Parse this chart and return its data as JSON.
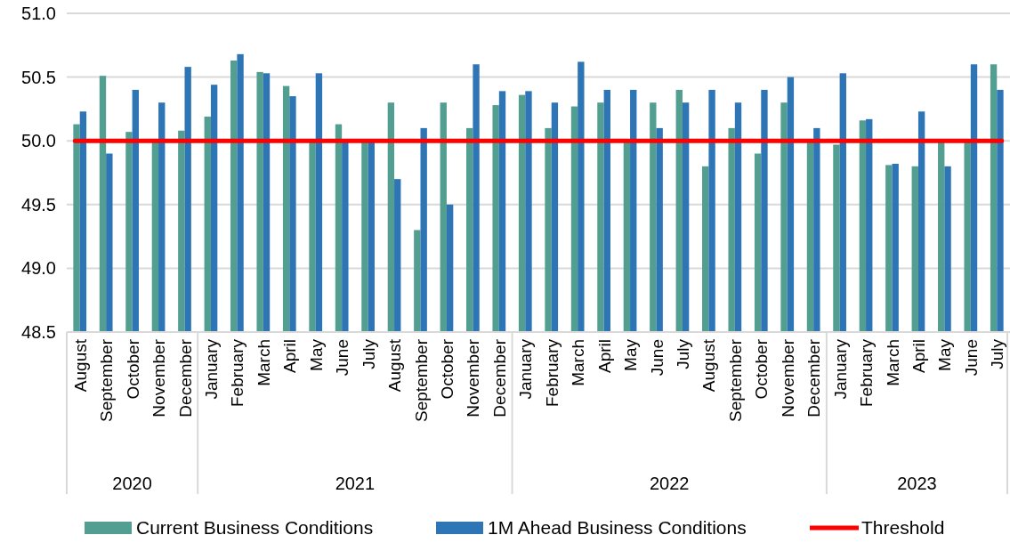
{
  "chart_data": {
    "type": "bar",
    "categories": [
      "August",
      "September",
      "October",
      "November",
      "December",
      "January",
      "February",
      "March",
      "April",
      "May",
      "June",
      "July",
      "August",
      "September",
      "October",
      "November",
      "December",
      "January",
      "February",
      "March",
      "April",
      "May",
      "June",
      "July",
      "August",
      "September",
      "October",
      "November",
      "December",
      "January",
      "February",
      "March",
      "April",
      "May",
      "June",
      "July"
    ],
    "series": [
      {
        "name": "Current Business Conditions",
        "color": "#529e91",
        "values": [
          50.13,
          50.51,
          50.07,
          50.0,
          50.08,
          50.19,
          50.63,
          50.54,
          50.43,
          50.0,
          50.13,
          50.0,
          50.3,
          49.3,
          50.3,
          50.1,
          50.28,
          50.36,
          50.1,
          50.27,
          50.3,
          50.0,
          50.3,
          50.4,
          49.8,
          50.1,
          49.9,
          50.3,
          50.0,
          49.97,
          50.16,
          49.81,
          49.8,
          50.0,
          50.0,
          50.6
        ]
      },
      {
        "name": "1M Ahead Business Conditions",
        "color": "#2e75b6",
        "values": [
          50.23,
          49.9,
          50.4,
          50.3,
          50.58,
          50.44,
          50.68,
          50.53,
          50.35,
          50.53,
          50.0,
          50.0,
          49.7,
          50.1,
          49.5,
          50.6,
          50.39,
          50.39,
          50.3,
          50.62,
          50.4,
          50.4,
          50.1,
          50.3,
          50.4,
          50.3,
          50.4,
          50.5,
          50.1,
          50.53,
          50.17,
          49.82,
          50.23,
          49.8,
          50.6,
          50.4
        ]
      }
    ],
    "ref_lines": [
      {
        "axis": "y",
        "value": 50.0,
        "label": "Threshold",
        "color": "#ff0000"
      }
    ],
    "annotations": [
      "2020",
      "2021",
      "2022",
      "2023"
    ],
    "ylim": [
      48.5,
      51.0
    ],
    "yticks": [
      {
        "value": 48.5,
        "label": "48.5"
      },
      {
        "value": 49.0,
        "label": "49.0"
      },
      {
        "value": 49.5,
        "label": "49.5"
      },
      {
        "value": 50.0,
        "label": "50.0"
      },
      {
        "value": 50.5,
        "label": "50.5"
      },
      {
        "value": 51.0,
        "label": "51.0"
      }
    ],
    "grid": "y",
    "legend": "bottom"
  }
}
